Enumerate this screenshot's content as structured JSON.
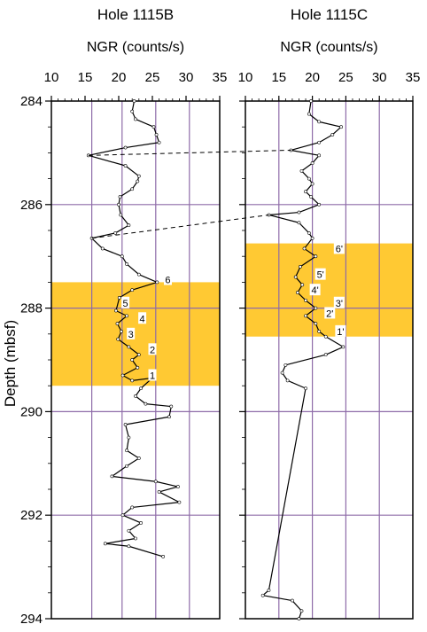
{
  "colors": {
    "highlight": "#FFC933",
    "gridline": "#8E6BA8",
    "trace": "#000000",
    "point": "#FFFFFF"
  },
  "chart_data": [
    {
      "type": "line",
      "title": "Hole 1115B",
      "xlabel": "NGR (counts/s)",
      "ylabel": "Depth (mbsf)",
      "xlim": [
        10,
        35
      ],
      "ylim": [
        284,
        294
      ],
      "y_inverted": true,
      "xticks": [
        "10",
        "15",
        "20",
        "25",
        "30",
        "35"
      ],
      "yticks": [
        "284",
        "286",
        "288",
        "290",
        "292",
        "294"
      ],
      "x_gridlines": [
        16,
        20.5,
        25.5,
        30.5
      ],
      "y_gridlines": [
        286,
        288,
        290,
        292
      ],
      "highlight_band": [
        287.5,
        289.5
      ],
      "series": [
        {
          "points": [
            [
              22.3,
              284.0
            ],
            [
              22.0,
              284.2
            ],
            [
              22.5,
              284.35
            ],
            [
              25.2,
              284.5
            ],
            [
              25.6,
              284.65
            ],
            [
              26.0,
              284.8
            ],
            [
              21.0,
              284.9
            ],
            [
              15.5,
              285.05
            ],
            [
              21.0,
              285.25
            ],
            [
              23.0,
              285.45
            ],
            [
              22.8,
              285.55
            ],
            [
              22.0,
              285.7
            ],
            [
              20.2,
              285.85
            ],
            [
              20.0,
              286.0
            ],
            [
              20.3,
              286.2
            ],
            [
              21.5,
              286.4
            ],
            [
              19.5,
              286.55
            ],
            [
              16.0,
              286.65
            ],
            [
              17.6,
              286.85
            ],
            [
              20.5,
              287.0
            ],
            [
              21.2,
              287.15
            ],
            [
              23.0,
              287.35
            ],
            [
              25.7,
              287.5
            ],
            [
              22.0,
              287.65
            ],
            [
              20.1,
              287.8
            ],
            [
              19.6,
              288.05
            ],
            [
              21.2,
              288.15
            ],
            [
              19.8,
              288.3
            ],
            [
              20.4,
              288.45
            ],
            [
              19.9,
              288.6
            ],
            [
              21.5,
              288.75
            ],
            [
              23.0,
              288.9
            ],
            [
              22.0,
              289.0
            ],
            [
              22.8,
              289.15
            ],
            [
              20.6,
              289.3
            ],
            [
              22.0,
              289.4
            ],
            [
              25.0,
              289.35
            ],
            [
              23.3,
              289.55
            ],
            [
              22.5,
              289.7
            ],
            [
              24.0,
              289.85
            ],
            [
              27.8,
              289.9
            ],
            [
              27.5,
              290.1
            ],
            [
              21.0,
              290.25
            ],
            [
              21.5,
              290.5
            ],
            [
              21.2,
              290.75
            ],
            [
              23.0,
              290.9
            ],
            [
              21.2,
              291.05
            ],
            [
              19.0,
              291.25
            ],
            [
              25.5,
              291.35
            ],
            [
              28.8,
              291.45
            ],
            [
              26.0,
              291.55
            ],
            [
              29.0,
              291.75
            ],
            [
              22.0,
              291.85
            ],
            [
              20.6,
              292.0
            ],
            [
              23.3,
              292.15
            ],
            [
              21.5,
              292.3
            ],
            [
              22.5,
              292.45
            ],
            [
              18.0,
              292.55
            ],
            [
              21.5,
              292.6
            ],
            [
              26.6,
              292.8
            ]
          ]
        }
      ],
      "labels": [
        {
          "text": "6",
          "x": 27.3,
          "y": 287.45
        },
        {
          "text": "5",
          "x": 21.0,
          "y": 287.9
        },
        {
          "text": "4",
          "x": 23.5,
          "y": 288.2
        },
        {
          "text": "3",
          "x": 21.8,
          "y": 288.5
        },
        {
          "text": "2",
          "x": 25.0,
          "y": 288.8
        },
        {
          "text": "1",
          "x": 25.0,
          "y": 289.3
        }
      ]
    },
    {
      "type": "line",
      "title": "Hole 1115C",
      "xlabel": "NGR (counts/s)",
      "xlim": [
        10,
        35
      ],
      "ylim": [
        284,
        294
      ],
      "y_inverted": true,
      "xticks": [
        "10",
        "15",
        "20",
        "25",
        "30",
        "35"
      ],
      "x_gridlines": [
        15,
        20,
        25,
        30
      ],
      "y_gridlines": [
        286,
        288,
        290,
        292
      ],
      "highlight_band": [
        286.75,
        288.55
      ],
      "series": [
        {
          "points": [
            [
              19.8,
              284.0
            ],
            [
              19.5,
              284.25
            ],
            [
              21.0,
              284.4
            ],
            [
              24.3,
              284.5
            ],
            [
              23.0,
              284.65
            ],
            [
              21.0,
              284.8
            ],
            [
              16.8,
              284.95
            ],
            [
              21.0,
              285.05
            ],
            [
              20.0,
              285.2
            ],
            [
              18.4,
              285.35
            ],
            [
              19.5,
              285.5
            ],
            [
              20.0,
              285.6
            ],
            [
              19.0,
              285.75
            ],
            [
              19.8,
              285.85
            ],
            [
              21.0,
              286.0
            ],
            [
              18.0,
              286.15
            ],
            [
              13.5,
              286.2
            ],
            [
              18.0,
              286.35
            ],
            [
              19.5,
              286.55
            ],
            [
              20.0,
              286.65
            ],
            [
              18.8,
              286.85
            ],
            [
              20.5,
              287.0
            ],
            [
              18.2,
              287.2
            ],
            [
              17.5,
              287.4
            ],
            [
              18.5,
              287.55
            ],
            [
              17.8,
              287.7
            ],
            [
              19.0,
              287.85
            ],
            [
              20.5,
              288.0
            ],
            [
              19.0,
              288.15
            ],
            [
              20.5,
              288.3
            ],
            [
              21.0,
              288.45
            ],
            [
              22.0,
              288.55
            ],
            [
              24.6,
              288.75
            ],
            [
              22.0,
              288.9
            ],
            [
              16.0,
              289.1
            ],
            [
              15.5,
              289.25
            ],
            [
              16.3,
              289.4
            ],
            [
              19.0,
              289.55
            ],
            [
              13.5,
              293.45
            ],
            [
              12.6,
              293.55
            ],
            [
              17.0,
              293.65
            ],
            [
              18.4,
              293.85
            ],
            [
              18.0,
              294.0
            ]
          ]
        }
      ],
      "labels": [
        {
          "text": "6'",
          "x": 24.0,
          "y": 286.85
        },
        {
          "text": "5'",
          "x": 21.2,
          "y": 287.35
        },
        {
          "text": "4'",
          "x": 20.4,
          "y": 287.65
        },
        {
          "text": "3'",
          "x": 24.0,
          "y": 287.9
        },
        {
          "text": "2'",
          "x": 22.6,
          "y": 288.1
        },
        {
          "text": "1'",
          "x": 24.2,
          "y": 288.45
        }
      ]
    }
  ],
  "correlations": [
    {
      "from": [
        15.5,
        285.05
      ],
      "to": [
        16.8,
        284.95
      ]
    },
    {
      "from": [
        16.0,
        286.65
      ],
      "to": [
        13.5,
        286.2
      ]
    }
  ]
}
